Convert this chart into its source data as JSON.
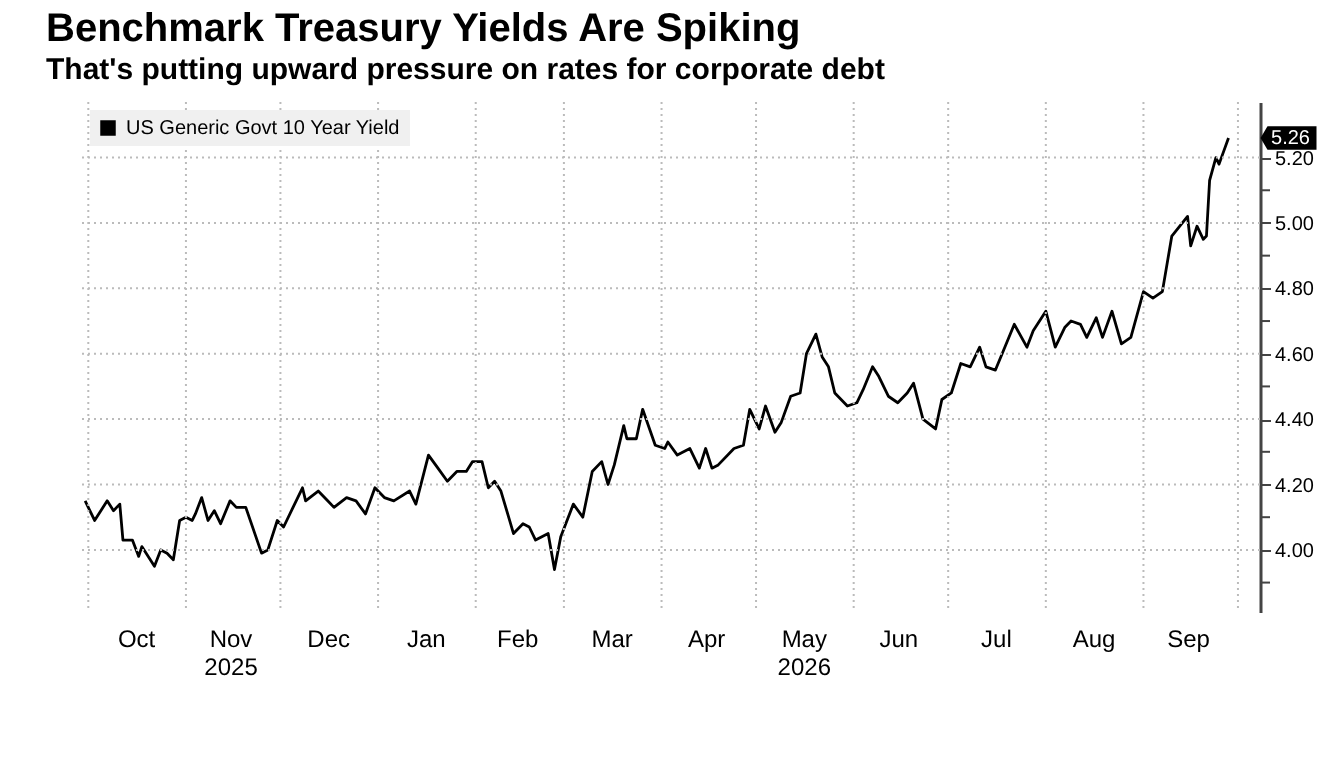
{
  "chart_data": {
    "type": "line",
    "title": "Benchmark Treasury Yields Are Spiking",
    "subtitle": "That's putting upward pressure on rates for corporate debt",
    "x": [
      "2025-09-30",
      "2025-10-03",
      "2025-10-07",
      "2025-10-09",
      "2025-10-11",
      "2025-10-12",
      "2025-10-15",
      "2025-10-17",
      "2025-10-18",
      "2025-10-22",
      "2025-10-24",
      "2025-10-26",
      "2025-10-28",
      "2025-10-30",
      "2025-11-01",
      "2025-11-03",
      "2025-11-04",
      "2025-11-06",
      "2025-11-08",
      "2025-11-10",
      "2025-11-12",
      "2025-11-15",
      "2025-11-17",
      "2025-11-20",
      "2025-11-25",
      "2025-11-27",
      "2025-11-30",
      "2025-12-02",
      "2025-12-05",
      "2025-12-08",
      "2025-12-09",
      "2025-12-13",
      "2025-12-16",
      "2025-12-18",
      "2025-12-22",
      "2025-12-25",
      "2025-12-28",
      "2025-12-31",
      "2026-01-03",
      "2026-01-06",
      "2026-01-11",
      "2026-01-13",
      "2026-01-17",
      "2026-01-20",
      "2026-01-23",
      "2026-01-26",
      "2026-01-29",
      "2026-01-31",
      "2026-02-03",
      "2026-02-05",
      "2026-02-07",
      "2026-02-09",
      "2026-02-13",
      "2026-02-16",
      "2026-02-18",
      "2026-02-20",
      "2026-02-24",
      "2026-02-26",
      "2026-02-28",
      "2026-03-04",
      "2026-03-07",
      "2026-03-10",
      "2026-03-13",
      "2026-03-15",
      "2026-03-17",
      "2026-03-20",
      "2026-03-21",
      "2026-03-24",
      "2026-03-26",
      "2026-03-30",
      "2026-04-02",
      "2026-04-03",
      "2026-04-06",
      "2026-04-10",
      "2026-04-13",
      "2026-04-15",
      "2026-04-17",
      "2026-04-19",
      "2026-04-24",
      "2026-04-27",
      "2026-04-29",
      "2026-05-02",
      "2026-05-04",
      "2026-05-07",
      "2026-05-09",
      "2026-05-12",
      "2026-05-15",
      "2026-05-17",
      "2026-05-20",
      "2026-05-22",
      "2026-05-24",
      "2026-05-26",
      "2026-05-30",
      "2026-06-02",
      "2026-06-04",
      "2026-06-07",
      "2026-06-09",
      "2026-06-12",
      "2026-06-15",
      "2026-06-18",
      "2026-06-20",
      "2026-06-23",
      "2026-06-27",
      "2026-06-29",
      "2026-07-02",
      "2026-07-05",
      "2026-07-08",
      "2026-07-11",
      "2026-07-13",
      "2026-07-16",
      "2026-07-22",
      "2026-07-26",
      "2026-07-28",
      "2026-08-01",
      "2026-08-04",
      "2026-08-07",
      "2026-08-09",
      "2026-08-12",
      "2026-08-14",
      "2026-08-17",
      "2026-08-19",
      "2026-08-22",
      "2026-08-25",
      "2026-08-28",
      "2026-09-01",
      "2026-09-04",
      "2026-09-07",
      "2026-09-10",
      "2026-09-15",
      "2026-09-16",
      "2026-09-18",
      "2026-09-20",
      "2026-09-21",
      "2026-09-22",
      "2026-09-24",
      "2026-09-25",
      "2026-09-28"
    ],
    "series": [
      {
        "name": "US Generic Govt 10 Year Yield",
        "color": "#000000",
        "values": [
          4.15,
          4.09,
          4.15,
          4.12,
          4.14,
          4.03,
          4.03,
          3.98,
          4.01,
          3.95,
          4.0,
          3.99,
          3.97,
          4.09,
          4.1,
          4.09,
          4.11,
          4.16,
          4.09,
          4.12,
          4.08,
          4.15,
          4.13,
          4.13,
          3.99,
          4.0,
          4.09,
          4.07,
          4.13,
          4.19,
          4.15,
          4.18,
          4.15,
          4.13,
          4.16,
          4.15,
          4.11,
          4.19,
          4.16,
          4.15,
          4.18,
          4.14,
          4.29,
          4.25,
          4.21,
          4.24,
          4.24,
          4.27,
          4.27,
          4.19,
          4.21,
          4.18,
          4.05,
          4.08,
          4.07,
          4.03,
          4.05,
          3.94,
          4.04,
          4.14,
          4.1,
          4.24,
          4.27,
          4.2,
          4.26,
          4.38,
          4.34,
          4.34,
          4.43,
          4.32,
          4.31,
          4.33,
          4.29,
          4.31,
          4.25,
          4.31,
          4.25,
          4.26,
          4.31,
          4.32,
          4.43,
          4.37,
          4.44,
          4.36,
          4.39,
          4.47,
          4.48,
          4.6,
          4.66,
          4.59,
          4.56,
          4.48,
          4.44,
          4.45,
          4.49,
          4.56,
          4.53,
          4.47,
          4.45,
          4.48,
          4.51,
          4.4,
          4.37,
          4.46,
          4.48,
          4.57,
          4.56,
          4.62,
          4.56,
          4.55,
          4.69,
          4.62,
          4.67,
          4.73,
          4.62,
          4.68,
          4.7,
          4.69,
          4.65,
          4.71,
          4.65,
          4.73,
          4.63,
          4.65,
          4.79,
          4.77,
          4.79,
          4.96,
          5.02,
          4.93,
          4.99,
          4.95,
          4.96,
          5.13,
          5.2,
          5.18,
          5.26
        ]
      }
    ],
    "xlim": [
      "2025-09-29",
      "2026-10-08"
    ],
    "xticks": [
      {
        "value": "2025-10-01",
        "label": null
      },
      {
        "value": "2025-10-16",
        "label": "Oct"
      },
      {
        "value": "2025-11-01",
        "label": null
      },
      {
        "value": "2025-11-15",
        "label": "Nov\n2025"
      },
      {
        "value": "2025-12-01",
        "label": null
      },
      {
        "value": "2025-12-16",
        "label": "Dec"
      },
      {
        "value": "2026-01-01",
        "label": null
      },
      {
        "value": "2026-01-16",
        "label": "Jan"
      },
      {
        "value": "2026-02-01",
        "label": null
      },
      {
        "value": "2026-02-14",
        "label": "Feb"
      },
      {
        "value": "2026-03-01",
        "label": null
      },
      {
        "value": "2026-03-16",
        "label": "Mar"
      },
      {
        "value": "2026-04-01",
        "label": null
      },
      {
        "value": "2026-04-15",
        "label": "Apr"
      },
      {
        "value": "2026-05-01",
        "label": null
      },
      {
        "value": "2026-05-16",
        "label": "May\n2026"
      },
      {
        "value": "2026-06-01",
        "label": null
      },
      {
        "value": "2026-06-15",
        "label": "Jun"
      },
      {
        "value": "2026-07-01",
        "label": null
      },
      {
        "value": "2026-07-16",
        "label": "Jul"
      },
      {
        "value": "2026-08-01",
        "label": null
      },
      {
        "value": "2026-08-16",
        "label": "Aug"
      },
      {
        "value": "2026-09-01",
        "label": null
      },
      {
        "value": "2026-09-15",
        "label": "Sep"
      },
      {
        "value": "2026-10-01",
        "label": null
      }
    ],
    "ylim": [
      3.81,
      5.37
    ],
    "yticks": [
      {
        "value": 3.9,
        "label": null
      },
      {
        "value": 4.0,
        "label": "4.00"
      },
      {
        "value": 4.1,
        "label": null
      },
      {
        "value": 4.2,
        "label": "4.20"
      },
      {
        "value": 4.3,
        "label": null
      },
      {
        "value": 4.4,
        "label": "4.40"
      },
      {
        "value": 4.5,
        "label": null
      },
      {
        "value": 4.6,
        "label": "4.60"
      },
      {
        "value": 4.7,
        "label": null
      },
      {
        "value": 4.8,
        "label": "4.80"
      },
      {
        "value": 4.9,
        "label": null
      },
      {
        "value": 5.0,
        "label": "5.00"
      },
      {
        "value": 5.1,
        "label": null
      },
      {
        "value": 5.2,
        "label": "5.20"
      }
    ],
    "annotations": [
      {
        "text": "5.26",
        "x": "2026-09-28",
        "y": 5.26
      }
    ],
    "grid": true,
    "legend": "top left"
  }
}
